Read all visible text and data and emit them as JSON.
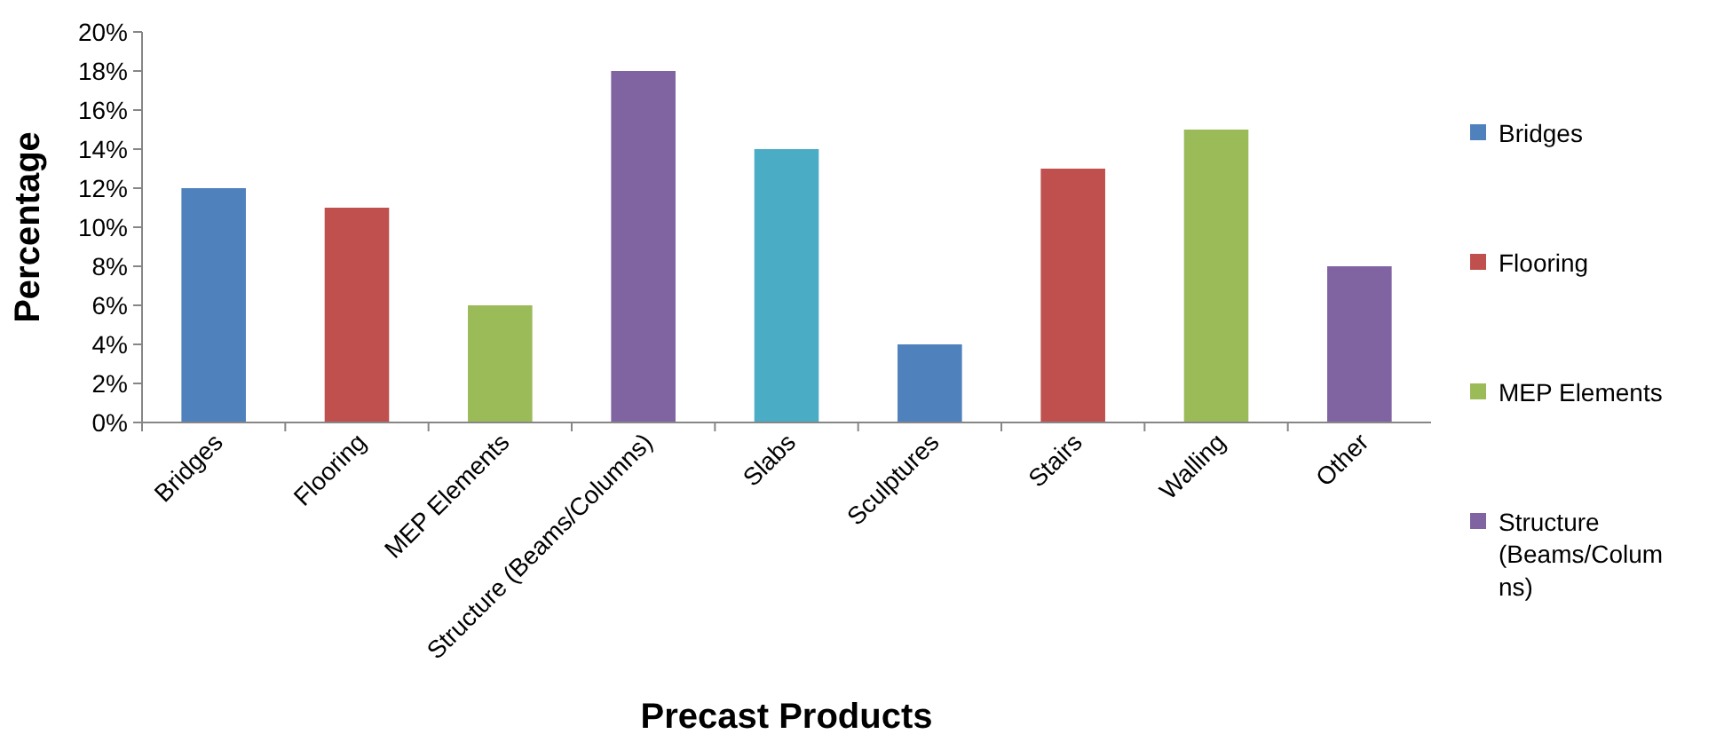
{
  "chart_data": {
    "type": "bar",
    "xlabel": "Precast Products",
    "ylabel": "Percentage",
    "categories": [
      "Bridges",
      "Flooring",
      "MEP Elements",
      "Structure (Beams/Columns)",
      "Slabs",
      "Sculptures",
      "Stairs",
      "Walling",
      "Other"
    ],
    "stacked": true,
    "series": [
      {
        "name": "Bridges",
        "color": "#4f81bd",
        "values": [
          12,
          null,
          null,
          null,
          null,
          4,
          null,
          null,
          null
        ]
      },
      {
        "name": "Flooring",
        "color": "#c0504d",
        "values": [
          null,
          11,
          null,
          null,
          null,
          null,
          13,
          null,
          null
        ]
      },
      {
        "name": "MEP Elements",
        "color": "#9bbb59",
        "values": [
          null,
          null,
          6,
          null,
          null,
          null,
          null,
          15,
          null
        ]
      },
      {
        "name": "Structure (Beams/Columns)",
        "color": "#8064a2",
        "values": [
          null,
          null,
          null,
          18,
          null,
          null,
          null,
          null,
          8
        ]
      },
      {
        "color": "#4bacc6",
        "values": [
          null,
          null,
          null,
          null,
          14,
          null,
          null,
          null,
          null
        ]
      }
    ],
    "ylim": [
      0,
      20
    ],
    "yticks": [
      {
        "value": 0,
        "label": "0%"
      },
      {
        "value": 2,
        "label": "2%"
      },
      {
        "value": 4,
        "label": "4%"
      },
      {
        "value": 6,
        "label": "6%"
      },
      {
        "value": 8,
        "label": "8%"
      },
      {
        "value": 10,
        "label": "10%"
      },
      {
        "value": 12,
        "label": "12%"
      },
      {
        "value": 14,
        "label": "14%"
      },
      {
        "value": 16,
        "label": "16%"
      },
      {
        "value": 18,
        "label": "18%"
      },
      {
        "value": 20,
        "label": "20%"
      }
    ],
    "legend": "right"
  }
}
